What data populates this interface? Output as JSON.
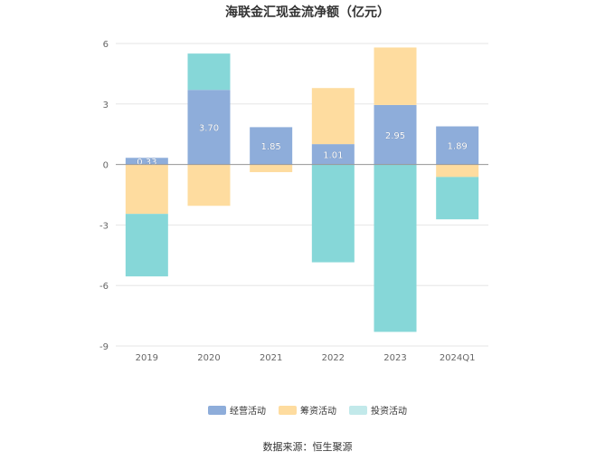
{
  "chart_data": {
    "type": "bar",
    "stacked": true,
    "title": "海联金汇现金流净额（亿元）",
    "xlabel": "",
    "ylabel": "",
    "categories": [
      "2019",
      "2020",
      "2021",
      "2022",
      "2023",
      "2024Q1"
    ],
    "ylim": [
      -9,
      6
    ],
    "yticks": [
      6,
      3,
      0,
      -3,
      -6,
      -9
    ],
    "grid": true,
    "legend_position": "bottom",
    "series": [
      {
        "name": "经营活动",
        "color": "#8eadda",
        "values": [
          0.33,
          3.7,
          1.85,
          1.01,
          2.95,
          1.89
        ],
        "labels": [
          "0.33",
          "3.70",
          "1.85",
          "1.01",
          "2.95",
          "1.89"
        ]
      },
      {
        "name": "筹资活动",
        "color": "#fedc9f",
        "values": [
          -2.45,
          -2.05,
          -0.38,
          2.78,
          2.85,
          -0.62
        ]
      },
      {
        "name": "投资活动",
        "color": "#86d7d8",
        "values": [
          -3.1,
          1.8,
          0.0,
          -4.85,
          -8.3,
          -2.1
        ]
      }
    ]
  },
  "legend": {
    "items": [
      {
        "label": "经营活动",
        "color": "#8eadda"
      },
      {
        "label": "筹资活动",
        "color": "#fedc9f"
      },
      {
        "label": "投资活动",
        "color": "#c2e9ea"
      }
    ]
  },
  "source_text": "数据来源：恒生聚源"
}
